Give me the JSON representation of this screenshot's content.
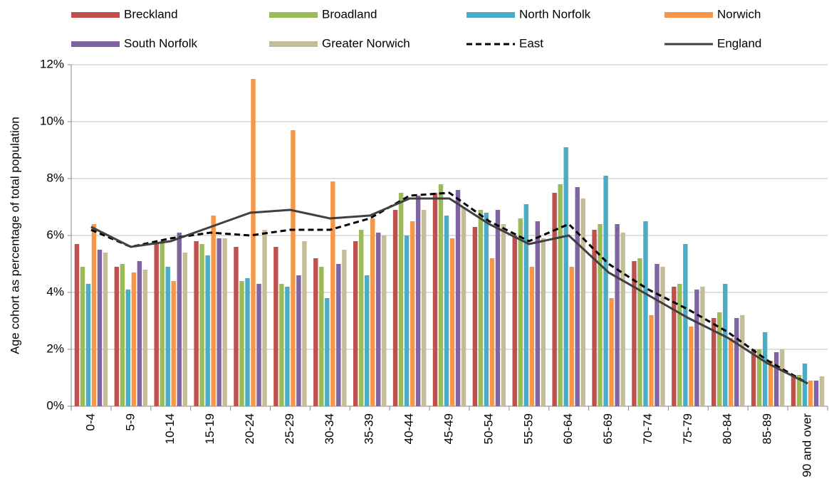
{
  "chart_data": {
    "type": "bar",
    "y_label": "Age cohort as percentage of total population",
    "categories": [
      "0-4",
      "5-9",
      "10-14",
      "15-19",
      "20-24",
      "25-29",
      "30-34",
      "35-39",
      "40-44",
      "45-49",
      "50-54",
      "55-59",
      "60-64",
      "65-69",
      "70-74",
      "75-79",
      "80-84",
      "85-89",
      "90 and over"
    ],
    "series": [
      {
        "name": "Breckland",
        "color": "#c0504d",
        "values": [
          5.7,
          4.9,
          5.7,
          5.8,
          5.6,
          5.6,
          5.2,
          5.8,
          6.9,
          7.5,
          6.3,
          6.0,
          7.5,
          6.2,
          5.1,
          4.2,
          3.1,
          2.0,
          1.1
        ]
      },
      {
        "name": "Broadland",
        "color": "#9bbb59",
        "values": [
          4.9,
          5.0,
          5.8,
          5.7,
          4.4,
          4.3,
          4.9,
          6.2,
          7.5,
          7.8,
          6.9,
          6.6,
          7.8,
          6.4,
          5.2,
          4.3,
          3.3,
          2.0,
          1.1
        ]
      },
      {
        "name": "North Norfolk",
        "color": "#4bacc6",
        "values": [
          4.3,
          4.1,
          4.9,
          5.3,
          4.5,
          4.2,
          3.8,
          4.6,
          6.0,
          6.7,
          6.8,
          7.1,
          9.1,
          8.1,
          6.5,
          5.7,
          4.3,
          2.6,
          1.5
        ]
      },
      {
        "name": "Norwich",
        "color": "#f79646",
        "values": [
          6.4,
          4.7,
          4.4,
          6.7,
          11.5,
          9.7,
          7.9,
          6.6,
          6.5,
          5.9,
          5.2,
          4.9,
          4.9,
          3.8,
          3.2,
          2.8,
          2.4,
          1.6,
          0.9
        ]
      },
      {
        "name": "South Norfolk",
        "color": "#8064a2",
        "values": [
          5.5,
          5.1,
          6.1,
          5.9,
          4.3,
          4.6,
          5.0,
          6.1,
          7.4,
          7.6,
          6.9,
          6.5,
          7.7,
          6.4,
          5.0,
          4.1,
          3.1,
          1.9,
          0.9
        ]
      },
      {
        "name": "Greater Norwich",
        "color": "#c4bd97",
        "values": [
          5.4,
          4.8,
          5.4,
          5.9,
          6.2,
          5.8,
          5.5,
          6.0,
          6.9,
          7.0,
          6.4,
          5.9,
          7.3,
          6.1,
          4.9,
          4.2,
          3.2,
          2.0,
          1.05
        ]
      },
      {
        "name": "East",
        "color": "#000000",
        "type": "line",
        "dashed": true,
        "values": [
          6.2,
          5.6,
          5.9,
          6.1,
          6.0,
          6.2,
          6.2,
          6.6,
          7.4,
          7.5,
          6.5,
          5.8,
          6.4,
          5.0,
          4.1,
          3.4,
          2.6,
          1.6,
          0.8
        ]
      },
      {
        "name": "England",
        "color": "#404040",
        "type": "line",
        "dashed": false,
        "values": [
          6.3,
          5.6,
          5.8,
          6.3,
          6.8,
          6.9,
          6.6,
          6.7,
          7.3,
          7.3,
          6.4,
          5.7,
          6.0,
          4.7,
          3.9,
          3.1,
          2.4,
          1.5,
          0.8
        ]
      }
    ],
    "ylim": [
      0,
      12
    ],
    "yticks": [
      {
        "value": 0,
        "label": "0%"
      },
      {
        "value": 2,
        "label": "2%"
      },
      {
        "value": 4,
        "label": "4%"
      },
      {
        "value": 6,
        "label": "6%"
      },
      {
        "value": 8,
        "label": "8%"
      },
      {
        "value": 10,
        "label": "10%"
      },
      {
        "value": 12,
        "label": "12%"
      }
    ],
    "grid": true,
    "legend": "top"
  }
}
